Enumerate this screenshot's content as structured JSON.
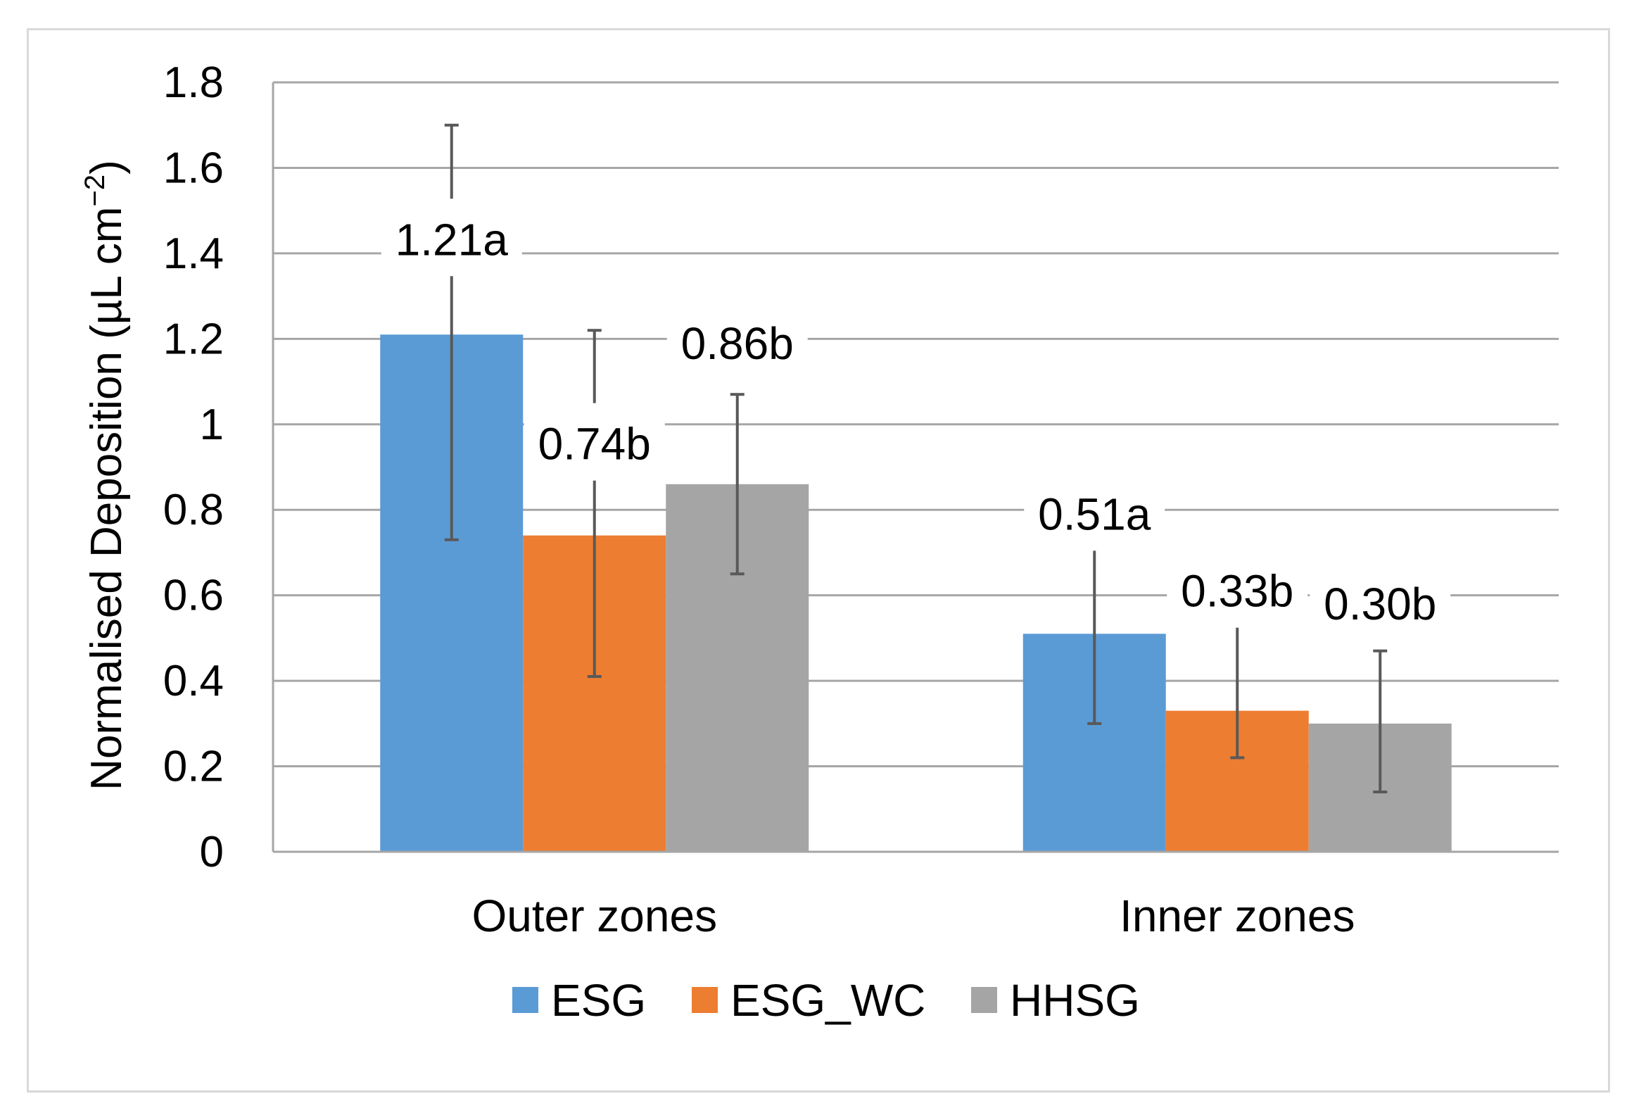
{
  "chart_data": {
    "type": "bar",
    "title": "",
    "ylabel": "Normalised Deposition (µL cm",
    "ylabel_sup": "−2",
    "ylabel_close": ")",
    "xlabel": "",
    "ylim": [
      0,
      1.8
    ],
    "yticks": [
      "0",
      "0.2",
      "0.4",
      "0.6",
      "0.8",
      "1",
      "1.2",
      "1.4",
      "1.6",
      "1.8"
    ],
    "ytick_values": [
      0,
      0.2,
      0.4,
      0.6,
      0.8,
      1.0,
      1.2,
      1.4,
      1.6,
      1.8
    ],
    "categories": [
      "Outer zones",
      "Inner zones"
    ],
    "legend_position": "bottom",
    "grid": true,
    "series": [
      {
        "name": "ESG",
        "color": "#5b9bd5",
        "values": [
          1.21,
          0.51
        ],
        "err_low": [
          0.73,
          0.3
        ],
        "err_high": [
          1.7,
          0.71
        ],
        "labels": [
          "1.21a",
          "0.51a"
        ]
      },
      {
        "name": "ESG_WC",
        "color": "#ed7d31",
        "values": [
          0.74,
          0.33
        ],
        "err_low": [
          0.41,
          0.22
        ],
        "err_high": [
          1.22,
          0.54
        ],
        "labels": [
          "0.74b",
          "0.33b"
        ]
      },
      {
        "name": "HHSG",
        "color": "#a5a5a5",
        "values": [
          0.86,
          0.3
        ],
        "err_low": [
          0.65,
          0.14
        ],
        "err_high": [
          1.07,
          0.47
        ],
        "labels": [
          "0.86b",
          "0.30b"
        ]
      }
    ]
  }
}
